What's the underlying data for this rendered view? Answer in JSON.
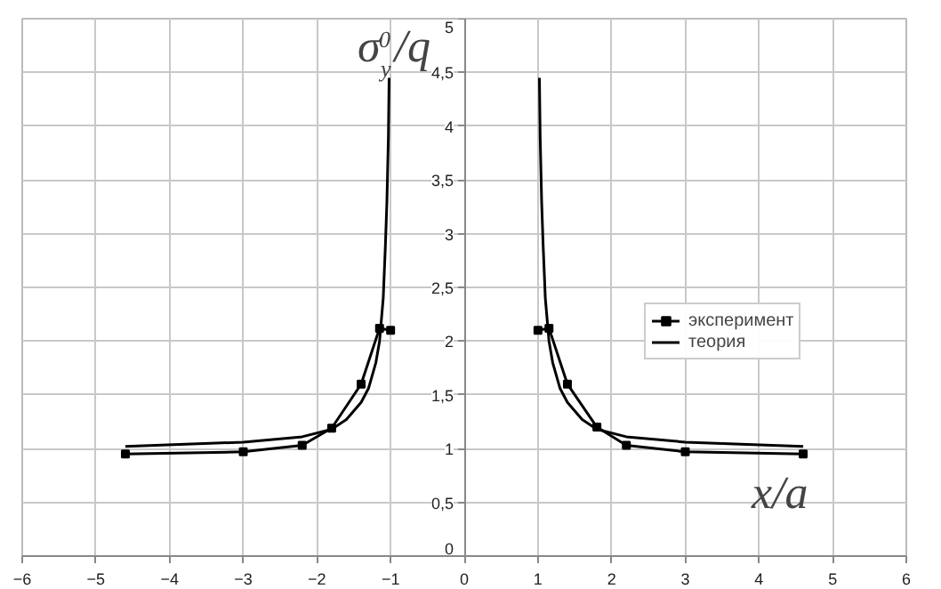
{
  "chart_data": {
    "type": "line",
    "xlabel": "x/a",
    "ylabel": "σ$_{y}$$^{0}$/q",
    "xlim": [
      -6,
      6
    ],
    "ylim": [
      0,
      5
    ],
    "xticks": [
      -6,
      -5,
      -4,
      -3,
      -2,
      -1,
      0,
      1,
      2,
      3,
      4,
      5,
      6
    ],
    "yticks": [
      0,
      {
        "value": 0.5,
        "label": "0,5"
      },
      1,
      {
        "value": 1.5,
        "label": "1,5"
      },
      2,
      {
        "value": 2.5,
        "label": "2,5"
      },
      3,
      {
        "value": 3.5,
        "label": "3,5"
      },
      4,
      {
        "value": 4.5,
        "label": "4,5"
      },
      5
    ],
    "grid": true,
    "legend": "right",
    "series": [
      {
        "name": "эксперимент",
        "color": "#000000",
        "marker": "square",
        "x": [
          -4.6,
          -3,
          -2.2,
          -1.8,
          -1.4,
          -1.15,
          -1.0,
          0,
          1.0,
          1.15,
          1.4,
          1.8,
          2.2,
          3,
          4.6
        ],
        "values": [
          0.95,
          0.97,
          1.03,
          1.19,
          1.6,
          2.12,
          2.1,
          null,
          2.1,
          2.12,
          1.6,
          1.2,
          1.03,
          0.97,
          0.95
        ]
      },
      {
        "name": "теория",
        "color": "#000000",
        "marker": "none",
        "x": [
          -4.6,
          -3,
          -2.2,
          -1.8,
          -1.6,
          -1.4,
          -1.3,
          -1.2,
          -1.15,
          -1.1,
          -1.07,
          -1.05,
          -1.03,
          -1.02,
          0,
          1.02,
          1.03,
          1.05,
          1.07,
          1.1,
          1.15,
          1.2,
          1.3,
          1.4,
          1.6,
          1.8,
          2.2,
          3,
          4.6
        ],
        "values": [
          1.02,
          1.06,
          1.11,
          1.18,
          1.27,
          1.43,
          1.56,
          1.8,
          2.0,
          2.4,
          2.9,
          3.3,
          3.9,
          4.45,
          null,
          4.45,
          3.9,
          3.3,
          2.9,
          2.4,
          2.0,
          1.8,
          1.56,
          1.43,
          1.27,
          1.18,
          1.11,
          1.06,
          1.02
        ]
      }
    ]
  }
}
